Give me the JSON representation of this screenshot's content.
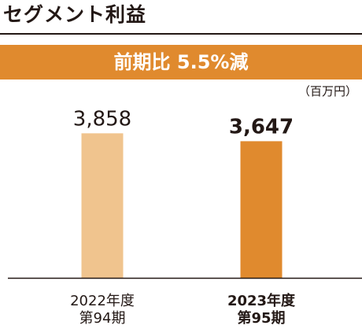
{
  "title": "セグメント利益",
  "banner": "前期比 5.5%減",
  "unit": "（百万円）",
  "colors": {
    "accent": "#e08a2e",
    "bar_prior": "#f0c48e",
    "bar_current": "#e08a2e",
    "text": "#231815"
  },
  "chart_data": {
    "type": "bar",
    "categories": [
      {
        "line1": "2022年度",
        "line2": "第94期"
      },
      {
        "line1": "2023年度",
        "line2": "第95期"
      }
    ],
    "values": [
      3858,
      3647
    ],
    "value_labels": [
      "3,858",
      "3,647"
    ],
    "ylim": [
      0,
      5000
    ],
    "grid": false
  }
}
